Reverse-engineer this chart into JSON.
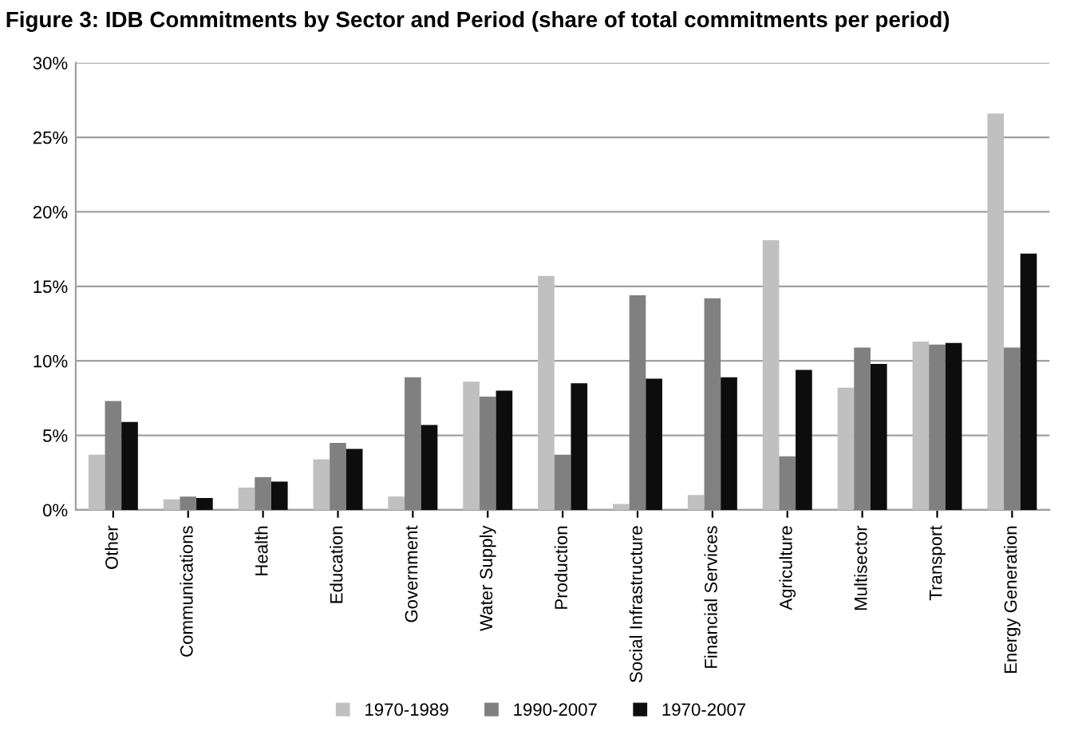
{
  "chart_data": {
    "type": "bar",
    "title": "Figure 3: IDB Commitments by Sector and Period (share of total commitments per period)",
    "categories": [
      "Other",
      "Communications",
      "Health",
      "Education",
      "Government",
      "Water Supply",
      "Production",
      "Social Infrastructure",
      "Financial Services",
      "Agriculture",
      "Multisector",
      "Transport",
      "Energy Generation"
    ],
    "series": [
      {
        "name": "1970-1989",
        "color": "#c0c0c0",
        "values": [
          3.7,
          0.7,
          1.5,
          3.4,
          0.9,
          8.6,
          15.7,
          0.4,
          1.0,
          18.1,
          8.2,
          11.3,
          26.6
        ]
      },
      {
        "name": "1990-2007",
        "color": "#808080",
        "values": [
          7.3,
          0.9,
          2.2,
          4.5,
          8.9,
          7.6,
          3.7,
          14.4,
          14.2,
          3.6,
          10.9,
          11.1,
          10.9
        ]
      },
      {
        "name": "1970-2007",
        "color": "#0d0d0d",
        "values": [
          5.9,
          0.8,
          1.9,
          4.1,
          5.7,
          8.0,
          8.5,
          8.8,
          8.9,
          9.4,
          9.8,
          11.2,
          17.2
        ]
      }
    ],
    "ylim": [
      0,
      30
    ],
    "yticks": [
      {
        "value": 0,
        "label": "0%"
      },
      {
        "value": 5,
        "label": "5%"
      },
      {
        "value": 10,
        "label": "10%"
      },
      {
        "value": 15,
        "label": "15%"
      },
      {
        "value": 20,
        "label": "20%"
      },
      {
        "value": 25,
        "label": "25%"
      },
      {
        "value": 30,
        "label": "30%"
      }
    ],
    "grid": "y",
    "legend": "bottom"
  }
}
